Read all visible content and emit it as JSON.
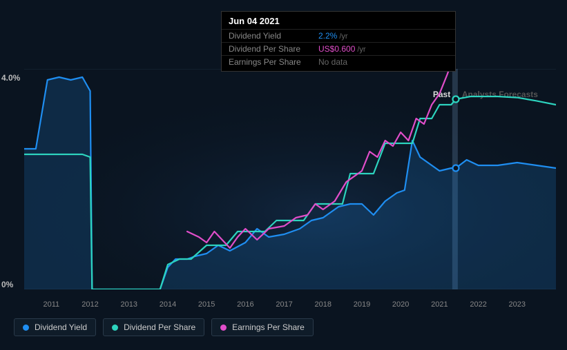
{
  "tooltip": {
    "date": "Jun 04 2021",
    "rows": [
      {
        "label": "Dividend Yield",
        "value": "2.2%",
        "unit": "/yr",
        "color": "#1f8ef1"
      },
      {
        "label": "Dividend Per Share",
        "value": "US$0.600",
        "unit": "/yr",
        "color": "#e14eca"
      },
      {
        "label": "Earnings Per Share",
        "value": "No data",
        "unit": "",
        "color": "#666"
      }
    ]
  },
  "chart": {
    "type": "line",
    "background_color": "#0a1420",
    "plot_background": "radial-gradient(ellipse at 60% 60%, rgba(20,50,90,0.35) 0%, rgba(10,20,32,0) 65%)",
    "grid_color": "#1a2a3a",
    "axis_text_color": "#888",
    "ylabel_max": "4.0%",
    "ylabel_min": "0%",
    "ylim": [
      0,
      4.0
    ],
    "x_ticks": [
      "2011",
      "2012",
      "2013",
      "2014",
      "2015",
      "2016",
      "2017",
      "2018",
      "2019",
      "2020",
      "2021",
      "2022",
      "2023"
    ],
    "x_range": [
      2010.3,
      2024.0
    ],
    "past_boundary_x": 2021.4,
    "past_label": "Past",
    "forecast_label": "Analysts Forecasts",
    "vertical_cursor_x": 2021.4,
    "vertical_cursor_color": "rgba(120,160,200,0.25)",
    "series": [
      {
        "name": "Dividend Yield",
        "color": "#1f8ef1",
        "fill": "rgba(31,142,241,0.18)",
        "line_width": 2.2,
        "marker_x": 2021.42,
        "marker_y": 2.2,
        "data": [
          [
            2010.3,
            2.55
          ],
          [
            2010.6,
            2.55
          ],
          [
            2010.9,
            3.8
          ],
          [
            2011.2,
            3.85
          ],
          [
            2011.5,
            3.8
          ],
          [
            2011.8,
            3.85
          ],
          [
            2012.0,
            3.6
          ],
          [
            2012.05,
            0.0
          ],
          [
            2013.0,
            0.0
          ],
          [
            2013.8,
            0.0
          ],
          [
            2014.0,
            0.4
          ],
          [
            2014.2,
            0.55
          ],
          [
            2014.5,
            0.55
          ],
          [
            2014.7,
            0.6
          ],
          [
            2015.0,
            0.65
          ],
          [
            2015.3,
            0.8
          ],
          [
            2015.6,
            0.7
          ],
          [
            2016.0,
            0.85
          ],
          [
            2016.3,
            1.1
          ],
          [
            2016.6,
            0.95
          ],
          [
            2017.0,
            1.0
          ],
          [
            2017.4,
            1.1
          ],
          [
            2017.7,
            1.25
          ],
          [
            2018.0,
            1.3
          ],
          [
            2018.4,
            1.5
          ],
          [
            2018.7,
            1.55
          ],
          [
            2019.0,
            1.55
          ],
          [
            2019.3,
            1.35
          ],
          [
            2019.6,
            1.6
          ],
          [
            2019.9,
            1.75
          ],
          [
            2020.1,
            1.8
          ],
          [
            2020.3,
            2.7
          ],
          [
            2020.5,
            2.4
          ],
          [
            2020.8,
            2.25
          ],
          [
            2021.0,
            2.15
          ],
          [
            2021.3,
            2.2
          ],
          [
            2021.42,
            2.2
          ],
          [
            2021.7,
            2.35
          ],
          [
            2022.0,
            2.25
          ],
          [
            2022.5,
            2.25
          ],
          [
            2023.0,
            2.3
          ],
          [
            2023.5,
            2.25
          ],
          [
            2024.0,
            2.2
          ]
        ]
      },
      {
        "name": "Dividend Per Share",
        "color": "#2dd4bf",
        "line_width": 2.2,
        "marker_x": 2021.42,
        "marker_y": 3.45,
        "data": [
          [
            2010.3,
            2.45
          ],
          [
            2011.0,
            2.45
          ],
          [
            2011.8,
            2.45
          ],
          [
            2012.0,
            2.4
          ],
          [
            2012.05,
            0.0
          ],
          [
            2013.0,
            0.0
          ],
          [
            2013.8,
            0.0
          ],
          [
            2014.0,
            0.45
          ],
          [
            2014.3,
            0.55
          ],
          [
            2014.6,
            0.55
          ],
          [
            2015.0,
            0.8
          ],
          [
            2015.5,
            0.8
          ],
          [
            2015.8,
            1.05
          ],
          [
            2016.0,
            1.05
          ],
          [
            2016.5,
            1.05
          ],
          [
            2016.8,
            1.25
          ],
          [
            2017.0,
            1.25
          ],
          [
            2017.5,
            1.25
          ],
          [
            2017.8,
            1.55
          ],
          [
            2018.0,
            1.55
          ],
          [
            2018.5,
            1.55
          ],
          [
            2018.7,
            2.1
          ],
          [
            2019.0,
            2.1
          ],
          [
            2019.3,
            2.1
          ],
          [
            2019.6,
            2.65
          ],
          [
            2020.0,
            2.65
          ],
          [
            2020.3,
            2.65
          ],
          [
            2020.5,
            3.1
          ],
          [
            2020.8,
            3.1
          ],
          [
            2021.0,
            3.35
          ],
          [
            2021.3,
            3.35
          ],
          [
            2021.42,
            3.45
          ],
          [
            2021.8,
            3.5
          ],
          [
            2022.0,
            3.5
          ],
          [
            2022.5,
            3.5
          ],
          [
            2023.0,
            3.48
          ],
          [
            2023.5,
            3.42
          ],
          [
            2024.0,
            3.35
          ]
        ]
      },
      {
        "name": "Earnings Per Share",
        "color": "#e14eca",
        "line_width": 2.2,
        "data": [
          [
            2014.5,
            1.05
          ],
          [
            2014.8,
            0.95
          ],
          [
            2015.0,
            0.85
          ],
          [
            2015.2,
            1.05
          ],
          [
            2015.4,
            0.9
          ],
          [
            2015.6,
            0.75
          ],
          [
            2015.8,
            0.95
          ],
          [
            2016.0,
            1.1
          ],
          [
            2016.3,
            0.9
          ],
          [
            2016.6,
            1.1
          ],
          [
            2017.0,
            1.15
          ],
          [
            2017.3,
            1.3
          ],
          [
            2017.6,
            1.35
          ],
          [
            2017.8,
            1.55
          ],
          [
            2018.0,
            1.45
          ],
          [
            2018.3,
            1.6
          ],
          [
            2018.6,
            1.95
          ],
          [
            2018.8,
            2.05
          ],
          [
            2019.0,
            2.15
          ],
          [
            2019.2,
            2.5
          ],
          [
            2019.4,
            2.4
          ],
          [
            2019.6,
            2.7
          ],
          [
            2019.8,
            2.6
          ],
          [
            2020.0,
            2.85
          ],
          [
            2020.2,
            2.7
          ],
          [
            2020.4,
            3.1
          ],
          [
            2020.6,
            3.0
          ],
          [
            2020.8,
            3.35
          ],
          [
            2021.0,
            3.55
          ],
          [
            2021.2,
            3.9
          ],
          [
            2021.35,
            4.2
          ]
        ]
      }
    ]
  },
  "legend": [
    {
      "label": "Dividend Yield",
      "color": "#1f8ef1"
    },
    {
      "label": "Dividend Per Share",
      "color": "#2dd4bf"
    },
    {
      "label": "Earnings Per Share",
      "color": "#e14eca"
    }
  ]
}
